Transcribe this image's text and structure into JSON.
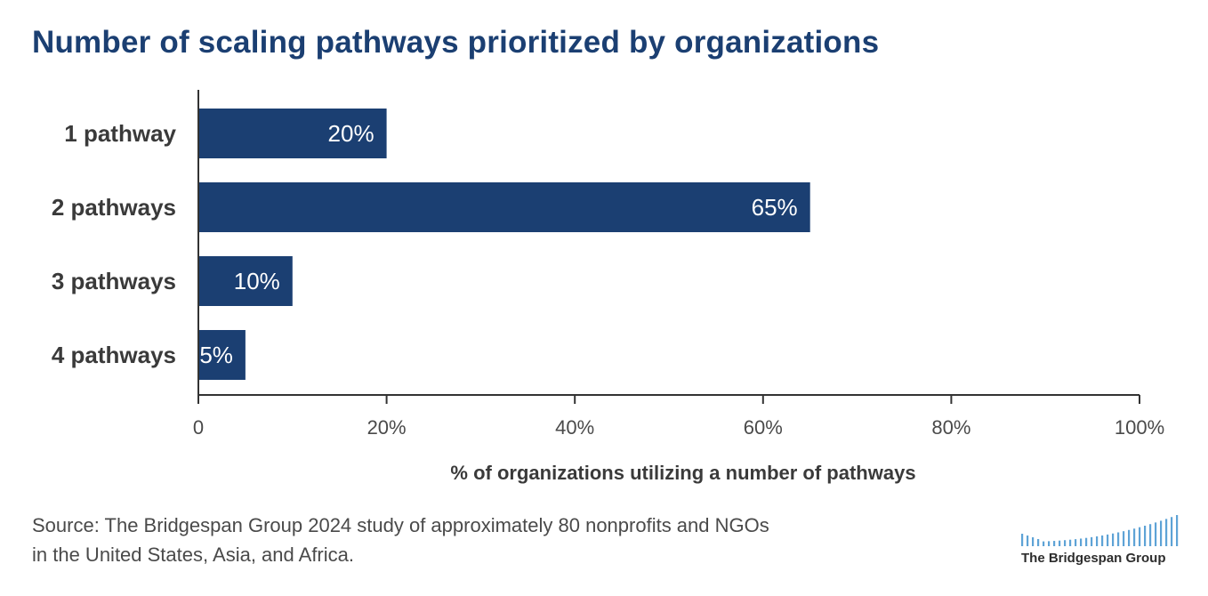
{
  "title": "Number of scaling pathways prioritized by organizations",
  "chart_data": {
    "type": "bar",
    "orientation": "horizontal",
    "categories": [
      "1 pathway",
      "2 pathways",
      "3 pathways",
      "4 pathways"
    ],
    "values": [
      20,
      65,
      10,
      5
    ],
    "data_labels": [
      "20%",
      "65%",
      "10%",
      "5%"
    ],
    "xlabel": "% of organizations utilizing a number of pathways",
    "ylabel": "",
    "xlim": [
      0,
      100
    ],
    "x_ticks": [
      "0",
      "20%",
      "40%",
      "60%",
      "80%",
      "100%"
    ],
    "grid": false,
    "legend": "none",
    "colors": {
      "bar": "#1b3f72",
      "axis": "#333333",
      "tick_label": "#4a4a4a",
      "category_label": "#3a3a3a"
    }
  },
  "source": {
    "line1": "Source: The Bridgespan Group 2024 study of approximately 80 nonprofits and NGOs",
    "line2": "in the United States, Asia, and Africa."
  },
  "logo": {
    "text": "The Bridgespan Group",
    "color": "#5ea3d6"
  }
}
